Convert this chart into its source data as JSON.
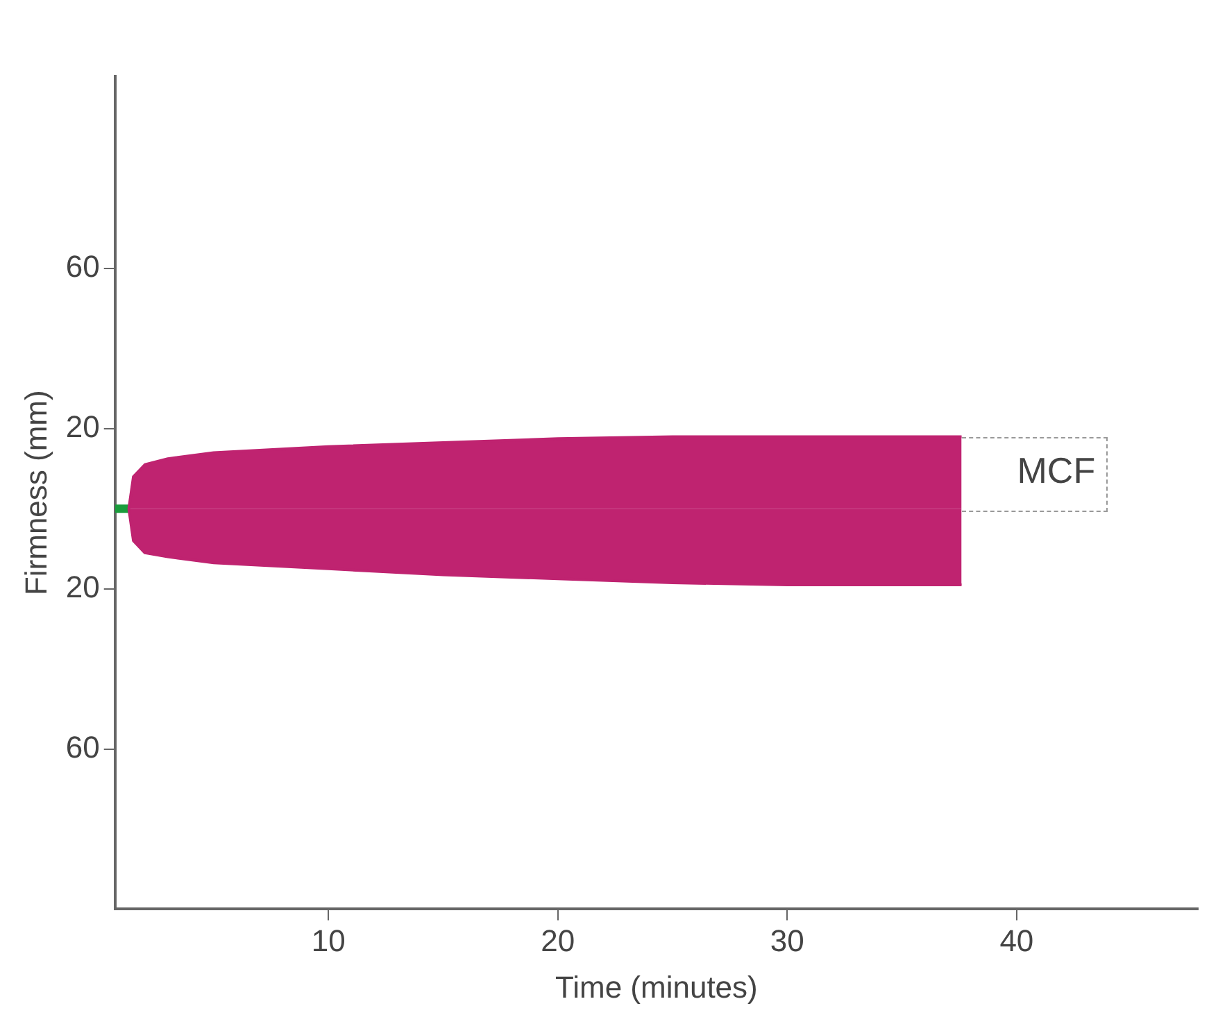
{
  "chart_data": {
    "type": "area",
    "xlabel": "Time (minutes)",
    "ylabel": "Firmness (mm)",
    "xlim": [
      0.7,
      47.9
    ],
    "ylim": [
      -100,
      108
    ],
    "xticks": [
      10,
      20,
      30,
      40
    ],
    "yticks": [
      {
        "value": 60,
        "label": "60"
      },
      {
        "value": 20,
        "label": "20"
      },
      {
        "value": -20,
        "label": "20"
      },
      {
        "value": -60,
        "label": "60"
      }
    ],
    "grid": false,
    "legend": false,
    "series": [
      {
        "color": "#bf2370",
        "x": [
          1.3,
          1.5,
          2,
          3,
          5,
          10,
          15,
          20,
          25,
          30,
          35,
          37.6
        ],
        "values": [
          0,
          8,
          11,
          12.5,
          14,
          15.5,
          16.5,
          17.5,
          18,
          18,
          18,
          18
        ]
      },
      {
        "color": "#bf2370",
        "x": [
          1.3,
          1.5,
          2,
          3,
          5,
          10,
          15,
          20,
          25,
          30,
          35,
          37.6
        ],
        "values": [
          0,
          -8,
          -11,
          -12,
          -13.5,
          -15,
          -16.5,
          -17.5,
          -18.5,
          -19,
          -19,
          -19
        ]
      },
      {
        "type": "line",
        "color": "#1a9c3c",
        "x": [
          0.7,
          1.3
        ],
        "values": [
          0,
          0
        ]
      }
    ],
    "annotations": [
      {
        "text": "MCF",
        "x": 37.6,
        "y": 18
      }
    ]
  }
}
